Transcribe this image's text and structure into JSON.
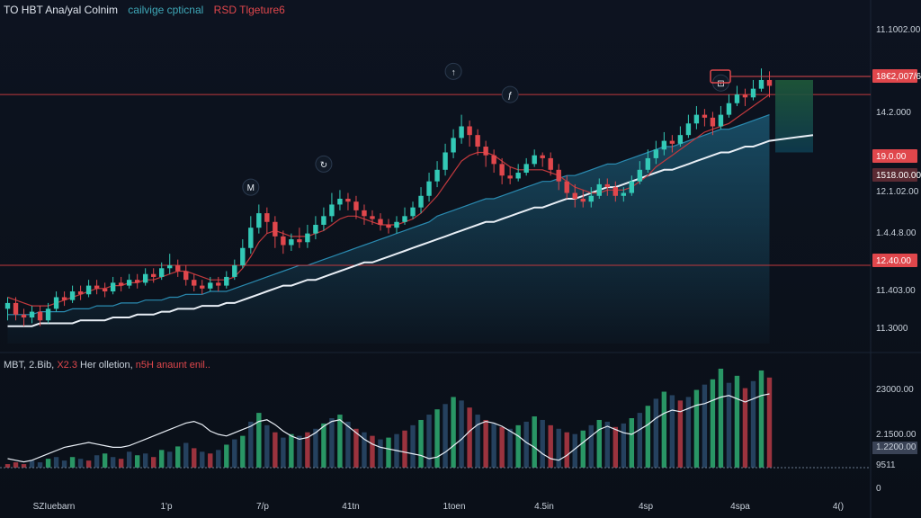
{
  "header": {
    "symbol": "TO HBT Ana/yal Colnim",
    "subtitle": "cailvige cpticnal",
    "indicator": "RSD Tlgeture6"
  },
  "volume_header": {
    "title": "MBT, 2.Bib,",
    "value": "X2.3",
    "label": "Her olletion,",
    "indicator": "n5H anaunt enil.."
  },
  "colors": {
    "background": "#0b1018",
    "up": "#33c9b6",
    "down": "#e0474c",
    "ma_red": "#c0393d",
    "ma_white": "#e8eef5",
    "area": "#1c5e7a",
    "hline": "#c0393d",
    "target_box_top": "#1f5a3a",
    "target_box_bottom": "#0e3b4f",
    "rsi_line": "#e8eef5",
    "vol_up": "#2fae73",
    "vol_down": "#b53a45",
    "vol_neutral": "#2a4a6b"
  },
  "chart_data": {
    "type": "candlestick",
    "title": "TO HBT Ana/yal Colnim",
    "xlabel": "",
    "ylabel": "",
    "x_ticks": [
      "SZIuebarn",
      "1'p",
      "7/p",
      "41tn",
      "1toen",
      "4.5in",
      "4sp",
      "4spa",
      "4()"
    ],
    "y_ticks": [
      "11.1002.00",
      "14.2.000",
      "12.1.02.00",
      "1.4.4.8.00",
      "11.403.00",
      "11.3000",
      "12400.00"
    ],
    "price_tags": [
      {
        "label": "18€2,007/6",
        "color": "#e0474c"
      },
      {
        "label": "19.0.00",
        "color": "#e0474c"
      },
      {
        "label": "1518.00.00",
        "color": "#5a2a33"
      },
      {
        "label": "12.40.00",
        "color": "#e0474c"
      }
    ],
    "ylim": [
      0,
      100
    ],
    "candles_note": "values in chart-relative price units (0-100 scale of the price axis)",
    "candles": [
      [
        12,
        14,
        8,
        16
      ],
      [
        14,
        10,
        8,
        16
      ],
      [
        10,
        9,
        6,
        12
      ],
      [
        9,
        11,
        7,
        13
      ],
      [
        11,
        8,
        6,
        13
      ],
      [
        8,
        12,
        7,
        14
      ],
      [
        12,
        16,
        11,
        18
      ],
      [
        16,
        15,
        13,
        18
      ],
      [
        15,
        18,
        14,
        20
      ],
      [
        18,
        17,
        15,
        20
      ],
      [
        17,
        20,
        16,
        22
      ],
      [
        20,
        19,
        17,
        22
      ],
      [
        19,
        18,
        16,
        21
      ],
      [
        18,
        21,
        17,
        23
      ],
      [
        21,
        20,
        18,
        23
      ],
      [
        20,
        22,
        19,
        24
      ],
      [
        22,
        21,
        19,
        24
      ],
      [
        21,
        24,
        20,
        26
      ],
      [
        24,
        23,
        21,
        26
      ],
      [
        23,
        26,
        22,
        28
      ],
      [
        26,
        27,
        24,
        31
      ],
      [
        27,
        25,
        23,
        29
      ],
      [
        25,
        22,
        20,
        27
      ],
      [
        22,
        20,
        18,
        24
      ],
      [
        20,
        19,
        17,
        22
      ],
      [
        19,
        21,
        18,
        23
      ],
      [
        21,
        20,
        18,
        23
      ],
      [
        20,
        23,
        19,
        25
      ],
      [
        23,
        27,
        22,
        29
      ],
      [
        27,
        33,
        26,
        36
      ],
      [
        33,
        40,
        31,
        44
      ],
      [
        40,
        45,
        38,
        48
      ],
      [
        45,
        42,
        38,
        47
      ],
      [
        42,
        37,
        33,
        44
      ],
      [
        37,
        34,
        31,
        39
      ],
      [
        34,
        36,
        32,
        38
      ],
      [
        36,
        35,
        33,
        40
      ],
      [
        35,
        38,
        33,
        41
      ],
      [
        38,
        41,
        36,
        44
      ],
      [
        41,
        44,
        39,
        47
      ],
      [
        44,
        48,
        42,
        52
      ],
      [
        48,
        50,
        46,
        53
      ],
      [
        50,
        49,
        46,
        52
      ],
      [
        49,
        46,
        43,
        51
      ],
      [
        46,
        44,
        41,
        48
      ],
      [
        44,
        43,
        41,
        46
      ],
      [
        43,
        41,
        39,
        45
      ],
      [
        41,
        40,
        38,
        43
      ],
      [
        40,
        42,
        38,
        44
      ],
      [
        42,
        44,
        41,
        47
      ],
      [
        44,
        47,
        43,
        49
      ],
      [
        47,
        51,
        45,
        54
      ],
      [
        51,
        56,
        49,
        59
      ],
      [
        56,
        60,
        54,
        63
      ],
      [
        60,
        66,
        58,
        69
      ],
      [
        66,
        71,
        64,
        74
      ],
      [
        71,
        75,
        69,
        79
      ],
      [
        75,
        72,
        68,
        77
      ],
      [
        72,
        68,
        65,
        74
      ],
      [
        68,
        65,
        61,
        70
      ],
      [
        65,
        62,
        59,
        67
      ],
      [
        62,
        58,
        55,
        64
      ],
      [
        58,
        57,
        55,
        61
      ],
      [
        57,
        59,
        56,
        62
      ],
      [
        59,
        62,
        58,
        64
      ],
      [
        62,
        65,
        61,
        67
      ],
      [
        65,
        64,
        61,
        66
      ],
      [
        64,
        60,
        58,
        66
      ],
      [
        60,
        56,
        53,
        62
      ],
      [
        56,
        52,
        50,
        58
      ],
      [
        52,
        50,
        47,
        55
      ],
      [
        50,
        49,
        47,
        53
      ],
      [
        49,
        51,
        47,
        54
      ],
      [
        51,
        55,
        50,
        57
      ],
      [
        55,
        54,
        51,
        57
      ],
      [
        54,
        51,
        49,
        56
      ],
      [
        51,
        52,
        49,
        54
      ],
      [
        52,
        56,
        51,
        58
      ],
      [
        56,
        60,
        55,
        63
      ],
      [
        60,
        64,
        59,
        67
      ],
      [
        64,
        67,
        62,
        70
      ],
      [
        67,
        70,
        65,
        73
      ],
      [
        70,
        69,
        66,
        72
      ],
      [
        69,
        72,
        68,
        75
      ],
      [
        72,
        76,
        71,
        79
      ],
      [
        76,
        79,
        74,
        82
      ],
      [
        79,
        78,
        75,
        81
      ],
      [
        78,
        75,
        72,
        80
      ],
      [
        75,
        79,
        74,
        82
      ],
      [
        79,
        83,
        78,
        86
      ],
      [
        83,
        86,
        82,
        89
      ],
      [
        86,
        85,
        82,
        88
      ],
      [
        85,
        88,
        84,
        91
      ],
      [
        88,
        91,
        87,
        95
      ],
      [
        91,
        89,
        85,
        94
      ]
    ],
    "ma_red": [
      16,
      15,
      14,
      13,
      13,
      13,
      14,
      15,
      16,
      17,
      18,
      19,
      19,
      20,
      20,
      21,
      21,
      22,
      22,
      23,
      24,
      25,
      25,
      24,
      23,
      22,
      22,
      22,
      23,
      26,
      30,
      35,
      38,
      39,
      38,
      37,
      37,
      37,
      38,
      39,
      41,
      43,
      44,
      44,
      43,
      42,
      41,
      41,
      41,
      42,
      43,
      45,
      48,
      51,
      55,
      59,
      63,
      65,
      66,
      66,
      65,
      63,
      61,
      60,
      60,
      60,
      60,
      59,
      58,
      56,
      54,
      53,
      52,
      52,
      53,
      53,
      53,
      54,
      56,
      58,
      61,
      63,
      65,
      67,
      69,
      71,
      73,
      74,
      75,
      76,
      78,
      80,
      82,
      84,
      86
    ],
    "ma_white": [
      6,
      6,
      6,
      6,
      7,
      7,
      7,
      7,
      7,
      8,
      8,
      8,
      8,
      9,
      9,
      9,
      10,
      10,
      10,
      11,
      11,
      12,
      12,
      12,
      13,
      13,
      13,
      14,
      14,
      15,
      16,
      17,
      18,
      19,
      20,
      20,
      21,
      22,
      22,
      23,
      24,
      25,
      26,
      27,
      28,
      28,
      29,
      30,
      31,
      32,
      33,
      34,
      35,
      36,
      37,
      38,
      39,
      40,
      41,
      42,
      42,
      43,
      44,
      45,
      46,
      47,
      47,
      48,
      49,
      50,
      50,
      51,
      52,
      53,
      54,
      54,
      55,
      56,
      57,
      58,
      59,
      60,
      60,
      61,
      62,
      63,
      64,
      65,
      66,
      66,
      67,
      68,
      68,
      69,
      70
    ],
    "area_top": [
      10,
      10,
      10,
      10,
      11,
      11,
      11,
      11,
      12,
      12,
      12,
      13,
      13,
      13,
      14,
      14,
      14,
      15,
      15,
      15,
      16,
      16,
      17,
      17,
      17,
      18,
      18,
      18,
      19,
      20,
      21,
      22,
      23,
      24,
      25,
      26,
      27,
      27,
      28,
      29,
      30,
      31,
      32,
      33,
      34,
      35,
      36,
      37,
      38,
      39,
      40,
      41,
      42,
      44,
      45,
      46,
      47,
      48,
      49,
      50,
      50,
      51,
      52,
      53,
      54,
      55,
      56,
      56,
      57,
      58,
      58,
      59,
      60,
      61,
      62,
      62,
      63,
      64,
      65,
      66,
      67,
      68,
      68,
      69,
      70,
      71,
      72,
      73,
      74,
      74,
      75,
      76,
      77,
      78,
      79
    ],
    "hline_levels": [
      27,
      86
    ],
    "target_box": {
      "from": 66,
      "to": 91
    },
    "event_markers": [
      {
        "glyph": "M",
        "index": 30,
        "level": 54
      },
      {
        "glyph": "↻",
        "index": 39,
        "level": 62
      },
      {
        "glyph": "↑",
        "index": 55,
        "level": 94
      },
      {
        "glyph": "ƒ",
        "index": 62,
        "level": 86
      },
      {
        "glyph": "⊡",
        "index": 88,
        "level": 90
      }
    ],
    "volume": {
      "y_ticks": [
        "23000.00",
        "2.1500.00",
        "1.2200.00",
        "9511",
        "0"
      ],
      "bars": [
        [
          2,
          "d"
        ],
        [
          3,
          "d"
        ],
        [
          2,
          "d"
        ],
        [
          4,
          "n"
        ],
        [
          3,
          "n"
        ],
        [
          5,
          "u"
        ],
        [
          6,
          "n"
        ],
        [
          4,
          "n"
        ],
        [
          6,
          "u"
        ],
        [
          5,
          "n"
        ],
        [
          4,
          "d"
        ],
        [
          7,
          "n"
        ],
        [
          8,
          "u"
        ],
        [
          6,
          "n"
        ],
        [
          5,
          "d"
        ],
        [
          9,
          "n"
        ],
        [
          7,
          "u"
        ],
        [
          8,
          "n"
        ],
        [
          6,
          "d"
        ],
        [
          10,
          "u"
        ],
        [
          9,
          "n"
        ],
        [
          12,
          "u"
        ],
        [
          14,
          "n"
        ],
        [
          11,
          "d"
        ],
        [
          9,
          "n"
        ],
        [
          8,
          "d"
        ],
        [
          10,
          "n"
        ],
        [
          13,
          "u"
        ],
        [
          16,
          "n"
        ],
        [
          18,
          "u"
        ],
        [
          26,
          "n"
        ],
        [
          31,
          "u"
        ],
        [
          24,
          "n"
        ],
        [
          20,
          "d"
        ],
        [
          17,
          "n"
        ],
        [
          19,
          "u"
        ],
        [
          18,
          "n"
        ],
        [
          20,
          "d"
        ],
        [
          22,
          "n"
        ],
        [
          25,
          "u"
        ],
        [
          28,
          "n"
        ],
        [
          30,
          "u"
        ],
        [
          26,
          "n"
        ],
        [
          22,
          "d"
        ],
        [
          20,
          "n"
        ],
        [
          18,
          "d"
        ],
        [
          16,
          "n"
        ],
        [
          17,
          "u"
        ],
        [
          19,
          "n"
        ],
        [
          21,
          "d"
        ],
        [
          24,
          "n"
        ],
        [
          27,
          "u"
        ],
        [
          30,
          "n"
        ],
        [
          33,
          "u"
        ],
        [
          36,
          "n"
        ],
        [
          40,
          "u"
        ],
        [
          38,
          "n"
        ],
        [
          34,
          "d"
        ],
        [
          30,
          "n"
        ],
        [
          27,
          "d"
        ],
        [
          25,
          "n"
        ],
        [
          23,
          "d"
        ],
        [
          22,
          "n"
        ],
        [
          24,
          "u"
        ],
        [
          26,
          "n"
        ],
        [
          29,
          "u"
        ],
        [
          27,
          "n"
        ],
        [
          24,
          "d"
        ],
        [
          22,
          "n"
        ],
        [
          20,
          "d"
        ],
        [
          19,
          "n"
        ],
        [
          21,
          "u"
        ],
        [
          24,
          "n"
        ],
        [
          27,
          "u"
        ],
        [
          26,
          "n"
        ],
        [
          23,
          "d"
        ],
        [
          25,
          "n"
        ],
        [
          28,
          "u"
        ],
        [
          31,
          "n"
        ],
        [
          35,
          "u"
        ],
        [
          39,
          "n"
        ],
        [
          43,
          "u"
        ],
        [
          41,
          "n"
        ],
        [
          38,
          "d"
        ],
        [
          40,
          "n"
        ],
        [
          44,
          "u"
        ],
        [
          47,
          "n"
        ],
        [
          50,
          "u"
        ],
        [
          56,
          "u"
        ],
        [
          48,
          "n"
        ],
        [
          52,
          "u"
        ],
        [
          45,
          "d"
        ],
        [
          49,
          "n"
        ],
        [
          55,
          "u"
        ],
        [
          51,
          "d"
        ]
      ],
      "rsi": [
        10,
        9,
        8,
        9,
        11,
        13,
        15,
        17,
        18,
        19,
        20,
        19,
        18,
        17,
        17,
        18,
        20,
        22,
        24,
        26,
        28,
        30,
        32,
        33,
        31,
        27,
        25,
        24,
        26,
        28,
        30,
        33,
        34,
        31,
        27,
        24,
        22,
        23,
        26,
        30,
        33,
        34,
        30,
        26,
        22,
        19,
        17,
        16,
        15,
        14,
        13,
        12,
        10,
        11,
        14,
        18,
        22,
        27,
        31,
        33,
        32,
        30,
        27,
        24,
        20,
        17,
        13,
        10,
        9,
        12,
        16,
        20,
        24,
        28,
        30,
        28,
        26,
        25,
        28,
        31,
        35,
        38,
        40,
        39,
        41,
        43,
        44,
        46,
        48,
        49,
        47,
        45,
        47,
        49,
        50
      ]
    }
  }
}
